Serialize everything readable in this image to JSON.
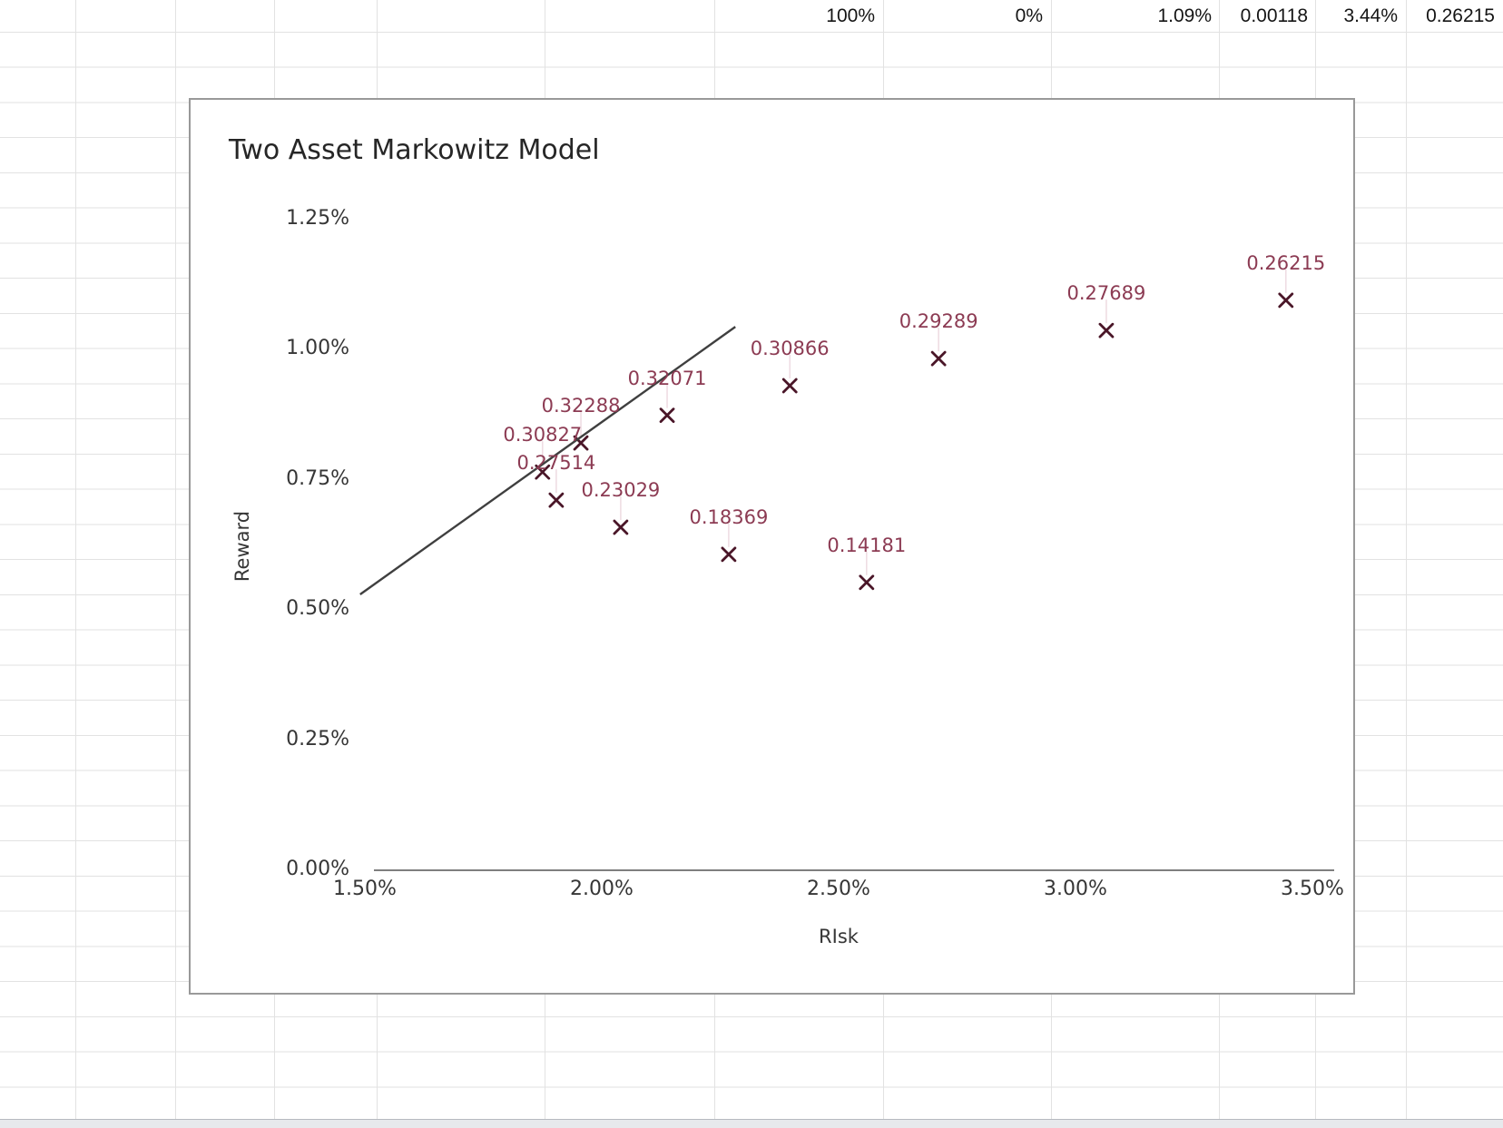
{
  "spreadsheet": {
    "top_row_values": [
      "100%",
      "0%",
      "1.09%",
      "0.00118",
      "3.44%",
      "0.26215"
    ]
  },
  "chart": {
    "title": "Two Asset Markowitz Model",
    "x_axis_title": "RIsk",
    "y_axis_title": "Reward",
    "x_tick_labels": [
      "1.50%",
      "2.00%",
      "2.50%",
      "3.00%",
      "3.50%"
    ],
    "y_tick_labels": [
      "1.25%",
      "1.00%",
      "0.75%",
      "0.50%",
      "0.25%",
      "0.00%"
    ]
  },
  "chart_data": {
    "type": "scatter",
    "title": "Two Asset Markowitz Model",
    "xlabel": "RIsk",
    "ylabel": "Reward",
    "x_ticks_pct": [
      1.5,
      2.0,
      2.5,
      3.0,
      3.5
    ],
    "y_ticks_pct": [
      1.25,
      1.0,
      0.75,
      0.5,
      0.25,
      0.0
    ],
    "xlim": [
      1.5,
      3.5
    ],
    "ylim": [
      0.0,
      1.25
    ],
    "grid": false,
    "legend": "none",
    "points": [
      {
        "label": "0.30827",
        "risk_pct": 1.875,
        "reward_pct": 0.765
      },
      {
        "label": "0.27514",
        "risk_pct": 1.904,
        "reward_pct": 0.711
      },
      {
        "label": "0.32288",
        "risk_pct": 1.956,
        "reward_pct": 0.821
      },
      {
        "label": "0.23029",
        "risk_pct": 2.04,
        "reward_pct": 0.659
      },
      {
        "label": "0.32071",
        "risk_pct": 2.138,
        "reward_pct": 0.874
      },
      {
        "label": "0.18369",
        "risk_pct": 2.268,
        "reward_pct": 0.607
      },
      {
        "label": "0.30866",
        "risk_pct": 2.397,
        "reward_pct": 0.931
      },
      {
        "label": "0.14181",
        "risk_pct": 2.559,
        "reward_pct": 0.553
      },
      {
        "label": "0.29289",
        "risk_pct": 2.711,
        "reward_pct": 0.983
      },
      {
        "label": "0.27689",
        "risk_pct": 3.065,
        "reward_pct": 1.037
      },
      {
        "label": "0.26215",
        "risk_pct": 3.444,
        "reward_pct": 1.095
      }
    ],
    "frontier_line": {
      "from": {
        "risk_pct": 1.49,
        "reward_pct": 0.53
      },
      "to": {
        "risk_pct": 2.282,
        "reward_pct": 1.044
      }
    },
    "colors": {
      "marker": "#4a1628",
      "point_label": "#8c3b53",
      "frontier_line": "#3f3f3f",
      "axis_line": "#7f7f7f",
      "leader_line": "#efdde3"
    }
  }
}
